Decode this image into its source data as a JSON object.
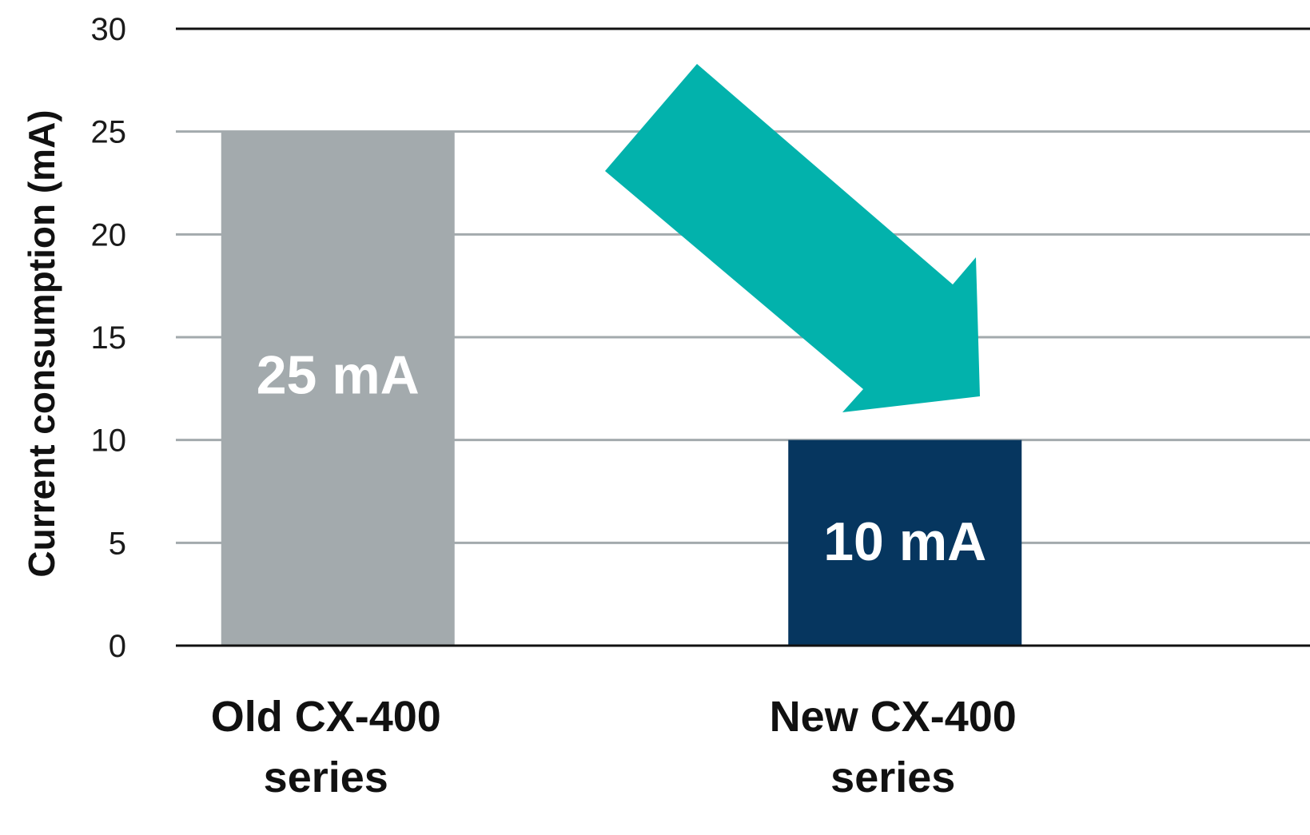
{
  "chart_data": {
    "type": "bar",
    "title": "",
    "xlabel": "",
    "ylabel": "Current consumption (mA)",
    "ylim": [
      0,
      30
    ],
    "yticks": [
      0,
      5,
      10,
      15,
      20,
      25,
      30
    ],
    "grid": true,
    "categories": [
      "Old CX-400 series",
      "New CX-400 series"
    ],
    "category_label_lines": [
      [
        "Old CX-400",
        "series"
      ],
      [
        "New CX-400",
        "series"
      ]
    ],
    "values": [
      25,
      10
    ],
    "data_labels": [
      "25 mA",
      "10 mA"
    ],
    "bar_colors": [
      "#a3aaad",
      "#06365f"
    ],
    "annotation": {
      "type": "arrow",
      "direction": "down-right",
      "from_category": 0,
      "to_category": 1,
      "color": "#02b2ac"
    },
    "colors": {
      "gridline": "#a3aaad",
      "axis_line": "#111111",
      "tick_text": "#1a1a1a",
      "data_label_text": "#ffffff"
    }
  }
}
